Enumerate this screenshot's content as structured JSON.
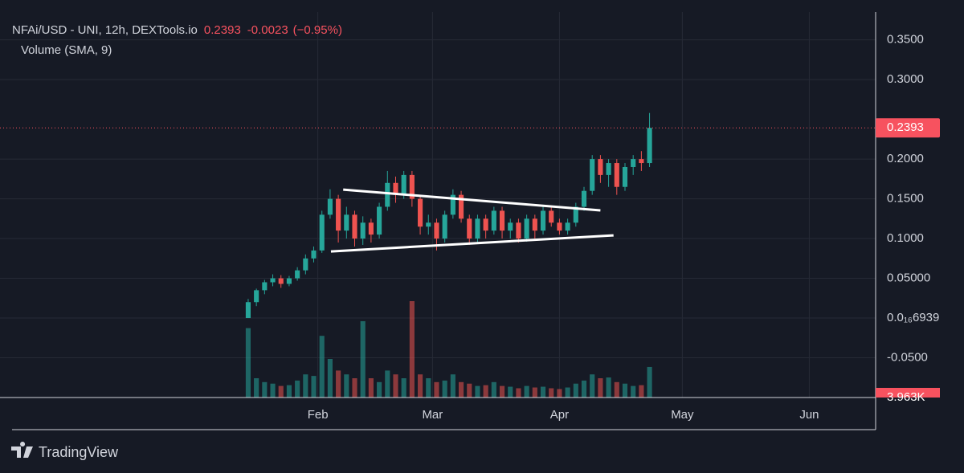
{
  "chart_data": {
    "type": "candlestick",
    "title": "NFAi/USD - UNI, 12h, DEXTools.io",
    "last_price": 0.2393,
    "change": -0.0023,
    "change_pct_label": "(−0.95%)",
    "subtitle": "Volume (SMA, 9)",
    "brand": "TradingView",
    "up_color": "#26a69a",
    "down_color": "#ef5350",
    "grid": true,
    "xlim": [
      -30.3,
      76.6
    ],
    "xticks": [
      {
        "value": 8.5,
        "label": "Feb"
      },
      {
        "value": 22.5,
        "label": "Mar"
      },
      {
        "value": 38,
        "label": "Apr"
      },
      {
        "value": 53,
        "label": "May"
      },
      {
        "value": 68.5,
        "label": "Jun"
      }
    ],
    "ylim": [
      -0.1,
      0.385
    ],
    "yticks": [
      {
        "value": 0.35,
        "label": "0.3500"
      },
      {
        "value": 0.3,
        "label": "0.3000"
      },
      {
        "value": 0.2,
        "label": "0.2000"
      },
      {
        "value": 0.15,
        "label": "0.1500"
      },
      {
        "value": 0.1,
        "label": "0.1000"
      },
      {
        "value": 0.05,
        "label": "0.05000"
      },
      {
        "value": 6.939e-17,
        "label": "0.0₁₆6939"
      },
      {
        "value": -0.05,
        "label": "-0.0500"
      }
    ],
    "candles": [
      [
        0.0,
        0.024,
        0.0,
        0.02
      ],
      [
        0.02,
        0.037,
        0.015,
        0.035
      ],
      [
        0.035,
        0.048,
        0.03,
        0.045
      ],
      [
        0.045,
        0.055,
        0.04,
        0.05
      ],
      [
        0.05,
        0.054,
        0.038,
        0.043
      ],
      [
        0.043,
        0.053,
        0.04,
        0.05
      ],
      [
        0.05,
        0.064,
        0.047,
        0.06
      ],
      [
        0.06,
        0.08,
        0.055,
        0.075
      ],
      [
        0.075,
        0.09,
        0.07,
        0.085
      ],
      [
        0.085,
        0.135,
        0.082,
        0.13
      ],
      [
        0.13,
        0.162,
        0.125,
        0.15
      ],
      [
        0.15,
        0.155,
        0.095,
        0.11
      ],
      [
        0.11,
        0.14,
        0.1,
        0.13
      ],
      [
        0.13,
        0.135,
        0.09,
        0.1
      ],
      [
        0.1,
        0.128,
        0.092,
        0.12
      ],
      [
        0.12,
        0.125,
        0.095,
        0.105
      ],
      [
        0.105,
        0.145,
        0.1,
        0.14
      ],
      [
        0.14,
        0.185,
        0.135,
        0.17
      ],
      [
        0.17,
        0.178,
        0.145,
        0.155
      ],
      [
        0.155,
        0.185,
        0.15,
        0.18
      ],
      [
        0.18,
        0.185,
        0.14,
        0.15
      ],
      [
        0.15,
        0.155,
        0.105,
        0.115
      ],
      [
        0.115,
        0.13,
        0.105,
        0.12
      ],
      [
        0.12,
        0.125,
        0.085,
        0.1
      ],
      [
        0.1,
        0.135,
        0.095,
        0.13
      ],
      [
        0.13,
        0.162,
        0.125,
        0.155
      ],
      [
        0.155,
        0.16,
        0.12,
        0.125
      ],
      [
        0.125,
        0.13,
        0.092,
        0.1
      ],
      [
        0.1,
        0.13,
        0.095,
        0.125
      ],
      [
        0.125,
        0.13,
        0.1,
        0.11
      ],
      [
        0.11,
        0.14,
        0.105,
        0.135
      ],
      [
        0.135,
        0.14,
        0.1,
        0.11
      ],
      [
        0.11,
        0.125,
        0.1,
        0.12
      ],
      [
        0.12,
        0.125,
        0.095,
        0.1
      ],
      [
        0.1,
        0.13,
        0.096,
        0.125
      ],
      [
        0.125,
        0.13,
        0.1,
        0.11
      ],
      [
        0.11,
        0.14,
        0.105,
        0.135
      ],
      [
        0.135,
        0.14,
        0.115,
        0.12
      ],
      [
        0.12,
        0.125,
        0.105,
        0.11
      ],
      [
        0.11,
        0.125,
        0.105,
        0.12
      ],
      [
        0.12,
        0.145,
        0.115,
        0.14
      ],
      [
        0.14,
        0.165,
        0.135,
        0.16
      ],
      [
        0.16,
        0.205,
        0.155,
        0.2
      ],
      [
        0.2,
        0.205,
        0.17,
        0.18
      ],
      [
        0.18,
        0.2,
        0.165,
        0.195
      ],
      [
        0.195,
        0.2,
        0.155,
        0.165
      ],
      [
        0.165,
        0.195,
        0.16,
        0.19
      ],
      [
        0.19,
        0.205,
        0.18,
        0.2
      ],
      [
        0.2,
        0.21,
        0.185,
        0.195
      ],
      [
        0.195,
        0.258,
        0.19,
        0.2393
      ]
    ],
    "volume": [
      9000,
      2500,
      2000,
      1800,
      1500,
      1600,
      2200,
      3000,
      2800,
      8000,
      5000,
      3500,
      3000,
      2500,
      9900,
      2500,
      2000,
      3500,
      3000,
      2500,
      12500,
      3000,
      2500,
      2000,
      2200,
      3000,
      2000,
      1800,
      1500,
      1600,
      2000,
      1500,
      1400,
      1200,
      1500,
      1300,
      1400,
      1200,
      1100,
      1300,
      1800,
      2200,
      3000,
      2500,
      2600,
      2000,
      1800,
      1500,
      1600,
      3963
    ],
    "volume_lim": [
      0,
      50000
    ],
    "volume_last": {
      "value": 3963,
      "label": "3.963K"
    },
    "trendlines": [
      [
        [
          11.6,
          0.1616
        ],
        [
          43.0,
          0.1354
        ]
      ],
      [
        [
          10.1,
          0.0838
        ],
        [
          44.6,
          0.104
        ]
      ]
    ]
  }
}
